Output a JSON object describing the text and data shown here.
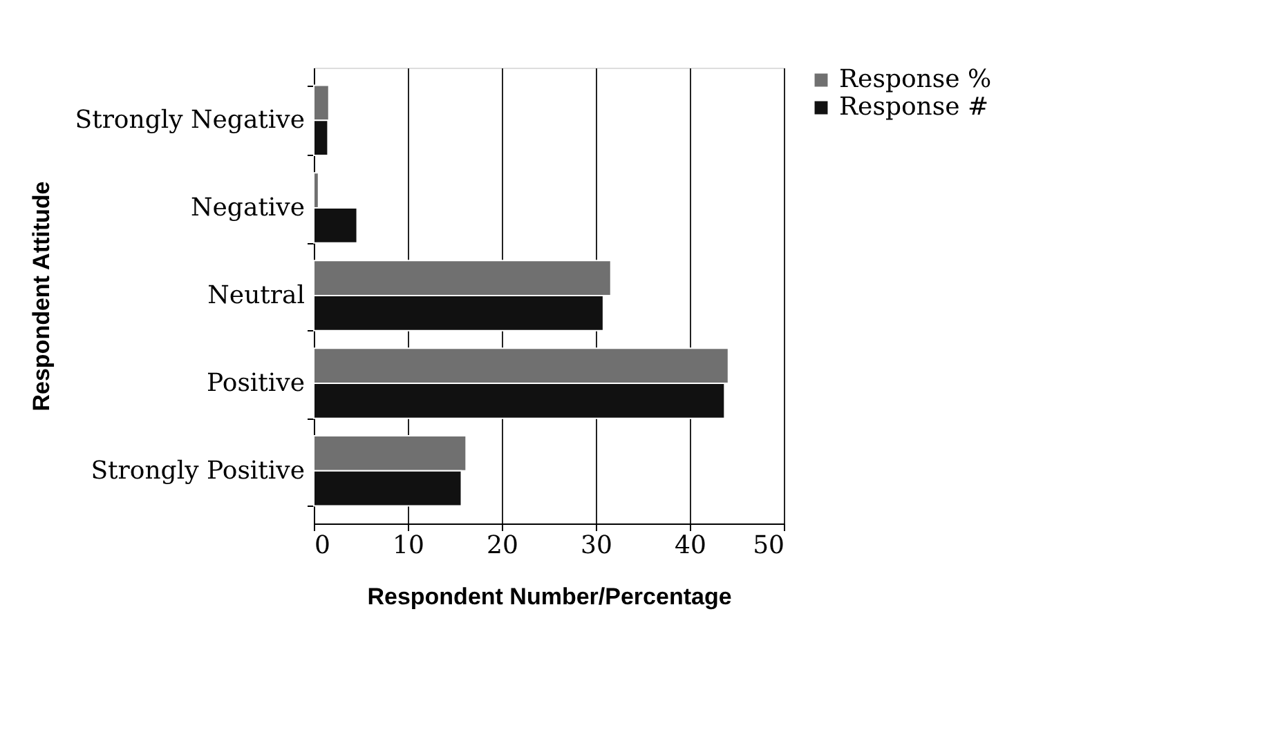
{
  "chart_data": {
    "type": "bar",
    "orientation": "horizontal",
    "xlabel": "Respondent Number/Percentage",
    "ylabel": "Respondent Attitude",
    "categories": [
      "Strongly Negative",
      "Negative",
      "Neutral",
      "Positive",
      "Strongly Positive"
    ],
    "series": [
      {
        "name": "Response %",
        "color": "#707070",
        "values": [
          1.6,
          0.5,
          31.6,
          44.1,
          16.2
        ]
      },
      {
        "name": "Response #",
        "color": "#111111",
        "values": [
          1.5,
          4.6,
          30.8,
          43.7,
          15.7
        ]
      }
    ],
    "xlim": [
      0,
      50
    ],
    "xticks": [
      0,
      10,
      20,
      30,
      40,
      50
    ],
    "grid": "x",
    "legend": "right"
  }
}
